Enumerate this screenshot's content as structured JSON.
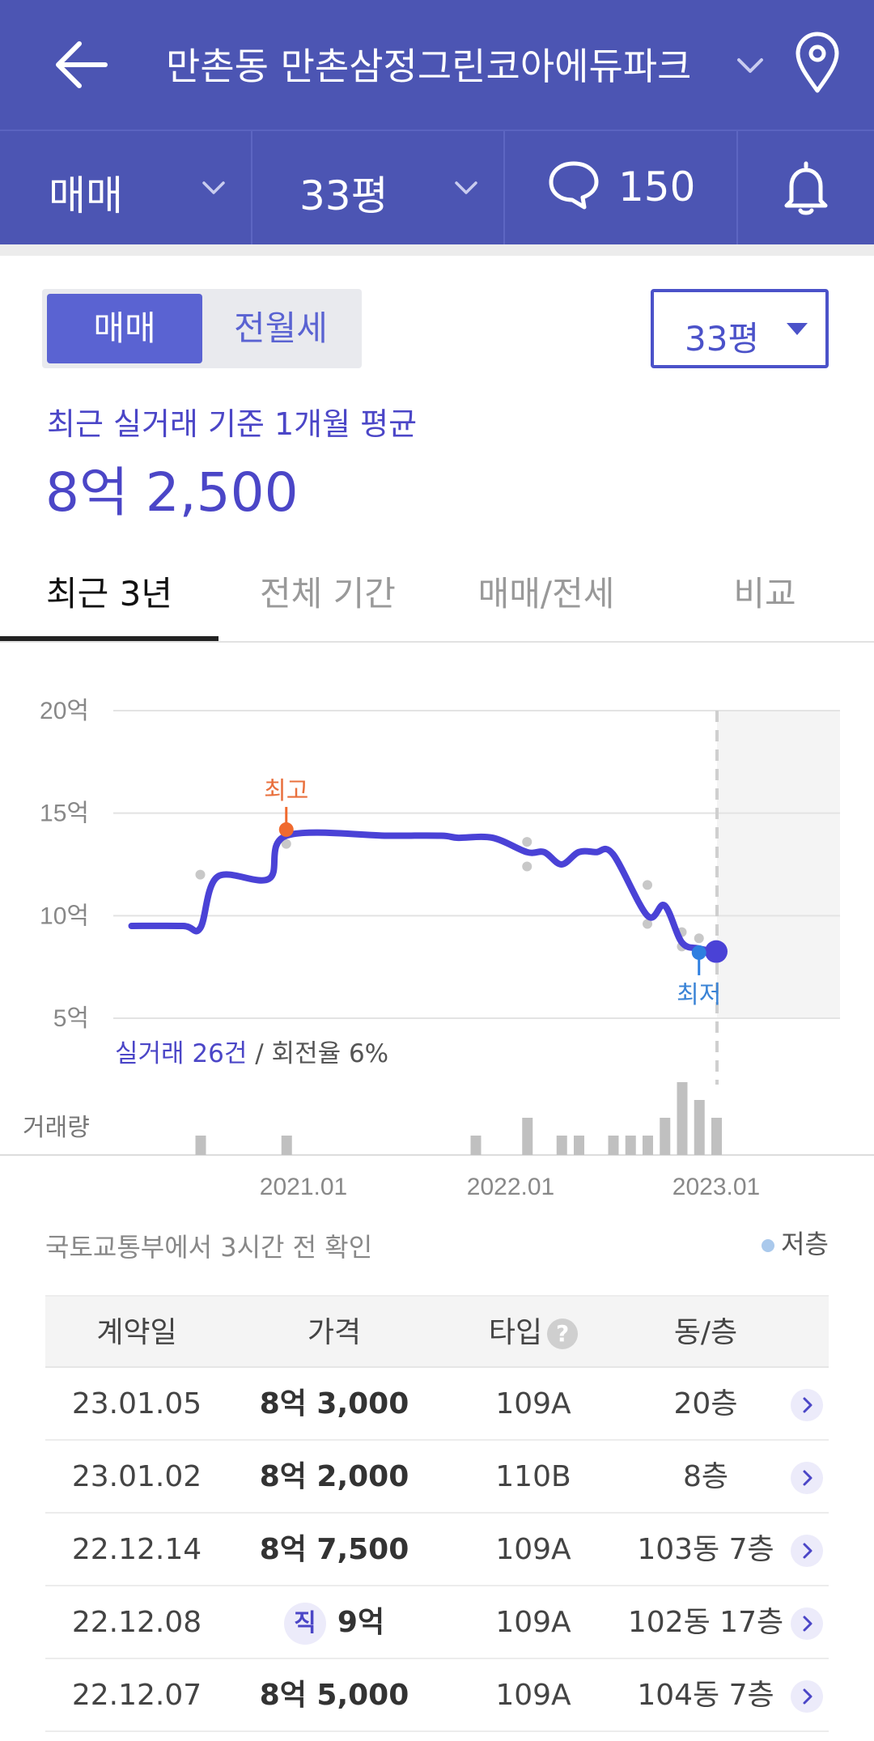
{
  "header": {
    "title": "만촌동 만촌삼정그린코아에듀파크"
  },
  "subbar": {
    "deal_type": "매매",
    "size": "33평",
    "comment_count": "150"
  },
  "toggle": {
    "active": "매매",
    "inactive": "전월세"
  },
  "size_select": {
    "value": "33평"
  },
  "summary": {
    "label": "최근 실거래 기준 1개월 평균",
    "value": "8억 2,500"
  },
  "tabs": [
    {
      "label": "최근 3년"
    },
    {
      "label": "전체 기간"
    },
    {
      "label": "매매/전세"
    },
    {
      "label": "비교"
    }
  ],
  "chart_data": {
    "type": "line",
    "y_unit": "억",
    "ylim": [
      5,
      20
    ],
    "y_ticks": [
      "20억",
      "15억",
      "10억",
      "5억"
    ],
    "x_ticks": [
      "2021.01",
      "2022.01",
      "2023.01"
    ],
    "series": [
      {
        "x": [
          "2020.03",
          "2020.06",
          "2020.07",
          "2020.08",
          "2020.11",
          "2020.12",
          "2021.06",
          "2021.09",
          "2021.10",
          "2021.12",
          "2022.02",
          "2022.03",
          "2022.04",
          "2022.05",
          "2022.06",
          "2022.07",
          "2022.09",
          "2022.10",
          "2022.11",
          "2022.12",
          "2023.01"
        ],
        "values": [
          9.5,
          9.5,
          9.4,
          11.9,
          11.8,
          13.9,
          13.9,
          13.9,
          13.8,
          13.8,
          13.1,
          13.1,
          12.5,
          13.1,
          13.1,
          13.0,
          10.0,
          10.5,
          8.7,
          8.4,
          8.25
        ]
      }
    ],
    "max_marker": {
      "label": "최고",
      "x": "2020.12",
      "value": 14.2
    },
    "min_marker": {
      "label": "최저",
      "x": "2022.12",
      "value": 8.2
    },
    "volume_label": "거래량",
    "volume": [
      1,
      1,
      1,
      2,
      1,
      1,
      1,
      1,
      1,
      2,
      4,
      3,
      2
    ]
  },
  "trade_summary": {
    "count": "실거래 26건",
    "rest": " / 회전율 6%"
  },
  "source_note": "국토교통부에서 3시간 전 확인",
  "legend": {
    "low_floor": "저층"
  },
  "table": {
    "headers": {
      "date": "계약일",
      "price": "가격",
      "type": "타입",
      "floor": "동/층"
    },
    "direct_badge": "직",
    "rows": [
      {
        "date": "23.01.05",
        "price": "8억 3,000",
        "type": "109A",
        "floor": "20층"
      },
      {
        "date": "23.01.02",
        "price": "8억 2,000",
        "type": "110B",
        "floor": "8층"
      },
      {
        "date": "22.12.14",
        "price": "8억 7,500",
        "type": "109A",
        "floor": "103동 7층"
      },
      {
        "date": "22.12.08",
        "price": "9억",
        "type": "109A",
        "floor": "102동 17층"
      },
      {
        "date": "22.12.07",
        "price": "8억 5,000",
        "type": "109A",
        "floor": "104동 7층"
      }
    ]
  }
}
